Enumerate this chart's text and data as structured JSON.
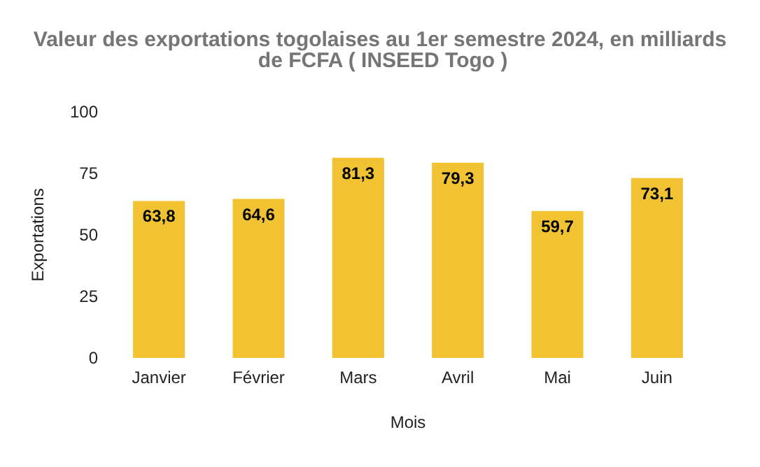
{
  "chart_data": {
    "type": "bar",
    "title": "Valeur des exportations togolaises au 1er semestre 2024, en milliards de FCFA ( INSEED Togo )",
    "xlabel": "Mois",
    "ylabel": "Exportations",
    "categories": [
      "Janvier",
      "Février",
      "Mars",
      "Avril",
      "Mai",
      "Juin"
    ],
    "values": [
      63.8,
      64.6,
      81.3,
      79.3,
      59.7,
      73.1
    ],
    "value_labels": [
      "63,8",
      "64,6",
      "81,3",
      "79,3",
      "59,7",
      "73,1"
    ],
    "color": "#f1c232",
    "ylim": [
      0,
      100
    ],
    "yticks": [
      0,
      25,
      50,
      75,
      100
    ],
    "grid": false
  }
}
